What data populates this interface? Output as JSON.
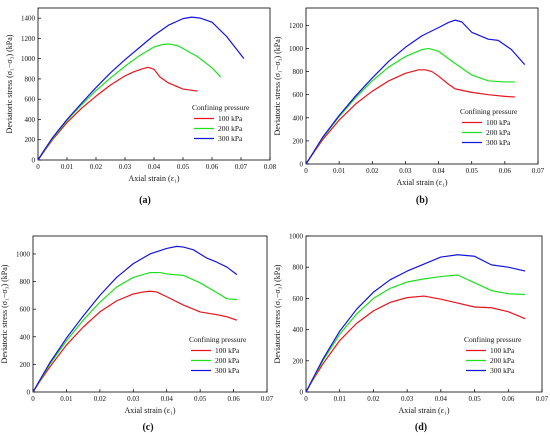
{
  "chart_data": [
    {
      "type": "line",
      "panel_label": "(a)",
      "xlabel": "Axial strain (ε₁)",
      "ylabel": "Deviatoric stress (σ₁−σ₃) (kPa)",
      "xlim": [
        0,
        0.08
      ],
      "ylim": [
        0,
        1500
      ],
      "xticks": [
        0,
        0.01,
        0.02,
        0.03,
        0.04,
        0.05,
        0.06,
        0.07,
        0.08
      ],
      "xtick_labels": [
        "0",
        "0.01",
        "0.02",
        "0.03",
        "0.04",
        "0.05",
        "0.06",
        "0.07",
        "0.08"
      ],
      "yticks": [
        0,
        200,
        400,
        600,
        800,
        1000,
        1200,
        1400
      ],
      "ytick_labels": [
        "0",
        "200",
        "400",
        "600",
        "800",
        "1000",
        "1200",
        "1400"
      ],
      "legend": {
        "title": "Confining pressure",
        "placement": "lower-right"
      },
      "series": [
        {
          "name": "100 kPa",
          "color": "#e8141c",
          "x": [
            0,
            0.002,
            0.005,
            0.01,
            0.015,
            0.02,
            0.025,
            0.03,
            0.033,
            0.036,
            0.038,
            0.04,
            0.042,
            0.045,
            0.05,
            0.055
          ],
          "y": [
            0,
            80,
            200,
            370,
            510,
            630,
            740,
            830,
            870,
            900,
            915,
            895,
            820,
            760,
            700,
            680
          ]
        },
        {
          "name": "200 kPa",
          "color": "#1ee01e",
          "x": [
            0,
            0.002,
            0.005,
            0.01,
            0.015,
            0.02,
            0.025,
            0.03,
            0.035,
            0.04,
            0.043,
            0.045,
            0.048,
            0.05,
            0.055,
            0.06,
            0.063
          ],
          "y": [
            0,
            85,
            210,
            390,
            545,
            685,
            810,
            925,
            1030,
            1115,
            1140,
            1145,
            1130,
            1100,
            1020,
            910,
            820
          ]
        },
        {
          "name": "300 kPa",
          "color": "#1414e0",
          "x": [
            0,
            0.002,
            0.005,
            0.01,
            0.015,
            0.02,
            0.025,
            0.03,
            0.035,
            0.04,
            0.045,
            0.05,
            0.053,
            0.056,
            0.06,
            0.065,
            0.071
          ],
          "y": [
            0,
            90,
            220,
            400,
            560,
            715,
            860,
            990,
            1110,
            1230,
            1330,
            1395,
            1410,
            1400,
            1360,
            1220,
            1000
          ]
        }
      ]
    },
    {
      "type": "line",
      "panel_label": "(b)",
      "xlabel": "Axial strain (ε₁)",
      "ylabel": "Deviatoric stress (σ₁−σ₃) (kPa)",
      "xlim": [
        0,
        0.07
      ],
      "ylim": [
        0,
        1350
      ],
      "xticks": [
        0,
        0.01,
        0.02,
        0.03,
        0.04,
        0.05,
        0.06,
        0.07
      ],
      "xtick_labels": [
        "0",
        "0.01",
        "0.02",
        "0.03",
        "0.04",
        "0.05",
        "0.06",
        "0.07"
      ],
      "yticks": [
        0,
        200,
        400,
        600,
        800,
        1000,
        1200
      ],
      "ytick_labels": [
        "0",
        "200",
        "400",
        "600",
        "800",
        "1000",
        "1200"
      ],
      "legend": {
        "title": "Confining pressure",
        "placement": "lower-right"
      },
      "series": [
        {
          "name": "100 kPa",
          "color": "#e8141c",
          "x": [
            0,
            0.002,
            0.005,
            0.01,
            0.015,
            0.02,
            0.025,
            0.03,
            0.034,
            0.036,
            0.038,
            0.04,
            0.043,
            0.045,
            0.05,
            0.055,
            0.06,
            0.063
          ],
          "y": [
            0,
            85,
            210,
            380,
            520,
            630,
            720,
            785,
            815,
            815,
            800,
            760,
            690,
            650,
            620,
            600,
            585,
            580
          ]
        },
        {
          "name": "200 kPa",
          "color": "#1ee01e",
          "x": [
            0,
            0.002,
            0.005,
            0.01,
            0.015,
            0.02,
            0.025,
            0.03,
            0.035,
            0.037,
            0.04,
            0.045,
            0.05,
            0.055,
            0.06,
            0.063
          ],
          "y": [
            0,
            90,
            225,
            410,
            575,
            720,
            840,
            930,
            990,
            1000,
            975,
            870,
            770,
            720,
            710,
            710
          ]
        },
        {
          "name": "300 kPa",
          "color": "#1414e0",
          "x": [
            0,
            0.002,
            0.005,
            0.01,
            0.015,
            0.02,
            0.025,
            0.03,
            0.035,
            0.04,
            0.043,
            0.045,
            0.047,
            0.05,
            0.055,
            0.058,
            0.062,
            0.066
          ],
          "y": [
            0,
            90,
            230,
            420,
            590,
            745,
            890,
            1010,
            1110,
            1180,
            1225,
            1245,
            1230,
            1140,
            1080,
            1070,
            990,
            860
          ]
        }
      ]
    },
    {
      "type": "line",
      "panel_label": "(c)",
      "xlabel": "Axial strain (ε₁)",
      "ylabel": "Deviatoric stress (σ₁−σ₃) (kPa)",
      "xlim": [
        0,
        0.07
      ],
      "ylim": [
        0,
        1130
      ],
      "xticks": [
        0,
        0.01,
        0.02,
        0.03,
        0.04,
        0.05,
        0.06,
        0.07
      ],
      "xtick_labels": [
        "0",
        "0.01",
        "0.02",
        "0.03",
        "0.04",
        "0.05",
        "0.06",
        "0.07"
      ],
      "yticks": [
        0,
        200,
        400,
        600,
        800,
        1000
      ],
      "ytick_labels": [
        "0",
        "200",
        "400",
        "600",
        "800",
        "1000"
      ],
      "legend": {
        "title": "Confining pressure",
        "placement": "lower-right"
      },
      "series": [
        {
          "name": "100 kPa",
          "color": "#e8141c",
          "x": [
            0,
            0.002,
            0.005,
            0.01,
            0.015,
            0.02,
            0.025,
            0.03,
            0.033,
            0.035,
            0.037,
            0.04,
            0.045,
            0.05,
            0.055,
            0.058,
            0.061
          ],
          "y": [
            0,
            75,
            180,
            340,
            470,
            580,
            660,
            710,
            725,
            730,
            725,
            690,
            630,
            580,
            560,
            545,
            520
          ]
        },
        {
          "name": "200 kPa",
          "color": "#1ee01e",
          "x": [
            0,
            0.002,
            0.005,
            0.01,
            0.015,
            0.02,
            0.025,
            0.03,
            0.035,
            0.038,
            0.04,
            0.045,
            0.05,
            0.055,
            0.058,
            0.061
          ],
          "y": [
            0,
            80,
            200,
            370,
            520,
            650,
            760,
            830,
            865,
            865,
            855,
            845,
            790,
            720,
            675,
            670
          ]
        },
        {
          "name": "300 kPa",
          "color": "#1414e0",
          "x": [
            0,
            0.002,
            0.005,
            0.01,
            0.015,
            0.02,
            0.025,
            0.03,
            0.035,
            0.04,
            0.043,
            0.045,
            0.048,
            0.05,
            0.052,
            0.055,
            0.058,
            0.061
          ],
          "y": [
            0,
            85,
            210,
            390,
            550,
            700,
            830,
            930,
            1000,
            1040,
            1055,
            1050,
            1030,
            1000,
            970,
            940,
            905,
            850
          ]
        }
      ]
    },
    {
      "type": "line",
      "panel_label": "(d)",
      "xlabel": "Axial strain (ε₁)",
      "ylabel": "Deviatoric stress (σ₁−σ₃) (kPa)",
      "xlim": [
        0,
        0.07
      ],
      "ylim": [
        0,
        1000
      ],
      "xticks": [
        0,
        0.01,
        0.02,
        0.03,
        0.04,
        0.05,
        0.06,
        0.07
      ],
      "xtick_labels": [
        "0",
        "0.01",
        "0.02",
        "0.03",
        "0.04",
        "0.05",
        "0.06",
        "0.07"
      ],
      "yticks": [
        0,
        200,
        400,
        600,
        800,
        1000
      ],
      "ytick_labels": [
        "0",
        "200",
        "400",
        "600",
        "800",
        "1000"
      ],
      "legend": {
        "title": "Confining pressure",
        "placement": "lower-right"
      },
      "series": [
        {
          "name": "100 kPa",
          "color": "#e8141c",
          "x": [
            0,
            0.002,
            0.005,
            0.01,
            0.015,
            0.02,
            0.025,
            0.03,
            0.035,
            0.04,
            0.045,
            0.05,
            0.055,
            0.06,
            0.065
          ],
          "y": [
            0,
            75,
            180,
            330,
            440,
            520,
            575,
            605,
            615,
            595,
            570,
            545,
            540,
            515,
            470
          ]
        },
        {
          "name": "200 kPa",
          "color": "#1ee01e",
          "x": [
            0,
            0.002,
            0.005,
            0.01,
            0.015,
            0.02,
            0.025,
            0.03,
            0.035,
            0.04,
            0.045,
            0.05,
            0.055,
            0.06,
            0.065
          ],
          "y": [
            0,
            80,
            200,
            370,
            500,
            600,
            665,
            705,
            725,
            740,
            750,
            700,
            650,
            630,
            625
          ]
        },
        {
          "name": "300 kPa",
          "color": "#1414e0",
          "x": [
            0,
            0.002,
            0.005,
            0.01,
            0.015,
            0.02,
            0.025,
            0.03,
            0.035,
            0.04,
            0.045,
            0.05,
            0.055,
            0.06,
            0.065
          ],
          "y": [
            0,
            85,
            210,
            390,
            530,
            640,
            720,
            775,
            820,
            865,
            880,
            870,
            815,
            800,
            775
          ]
        }
      ]
    }
  ]
}
